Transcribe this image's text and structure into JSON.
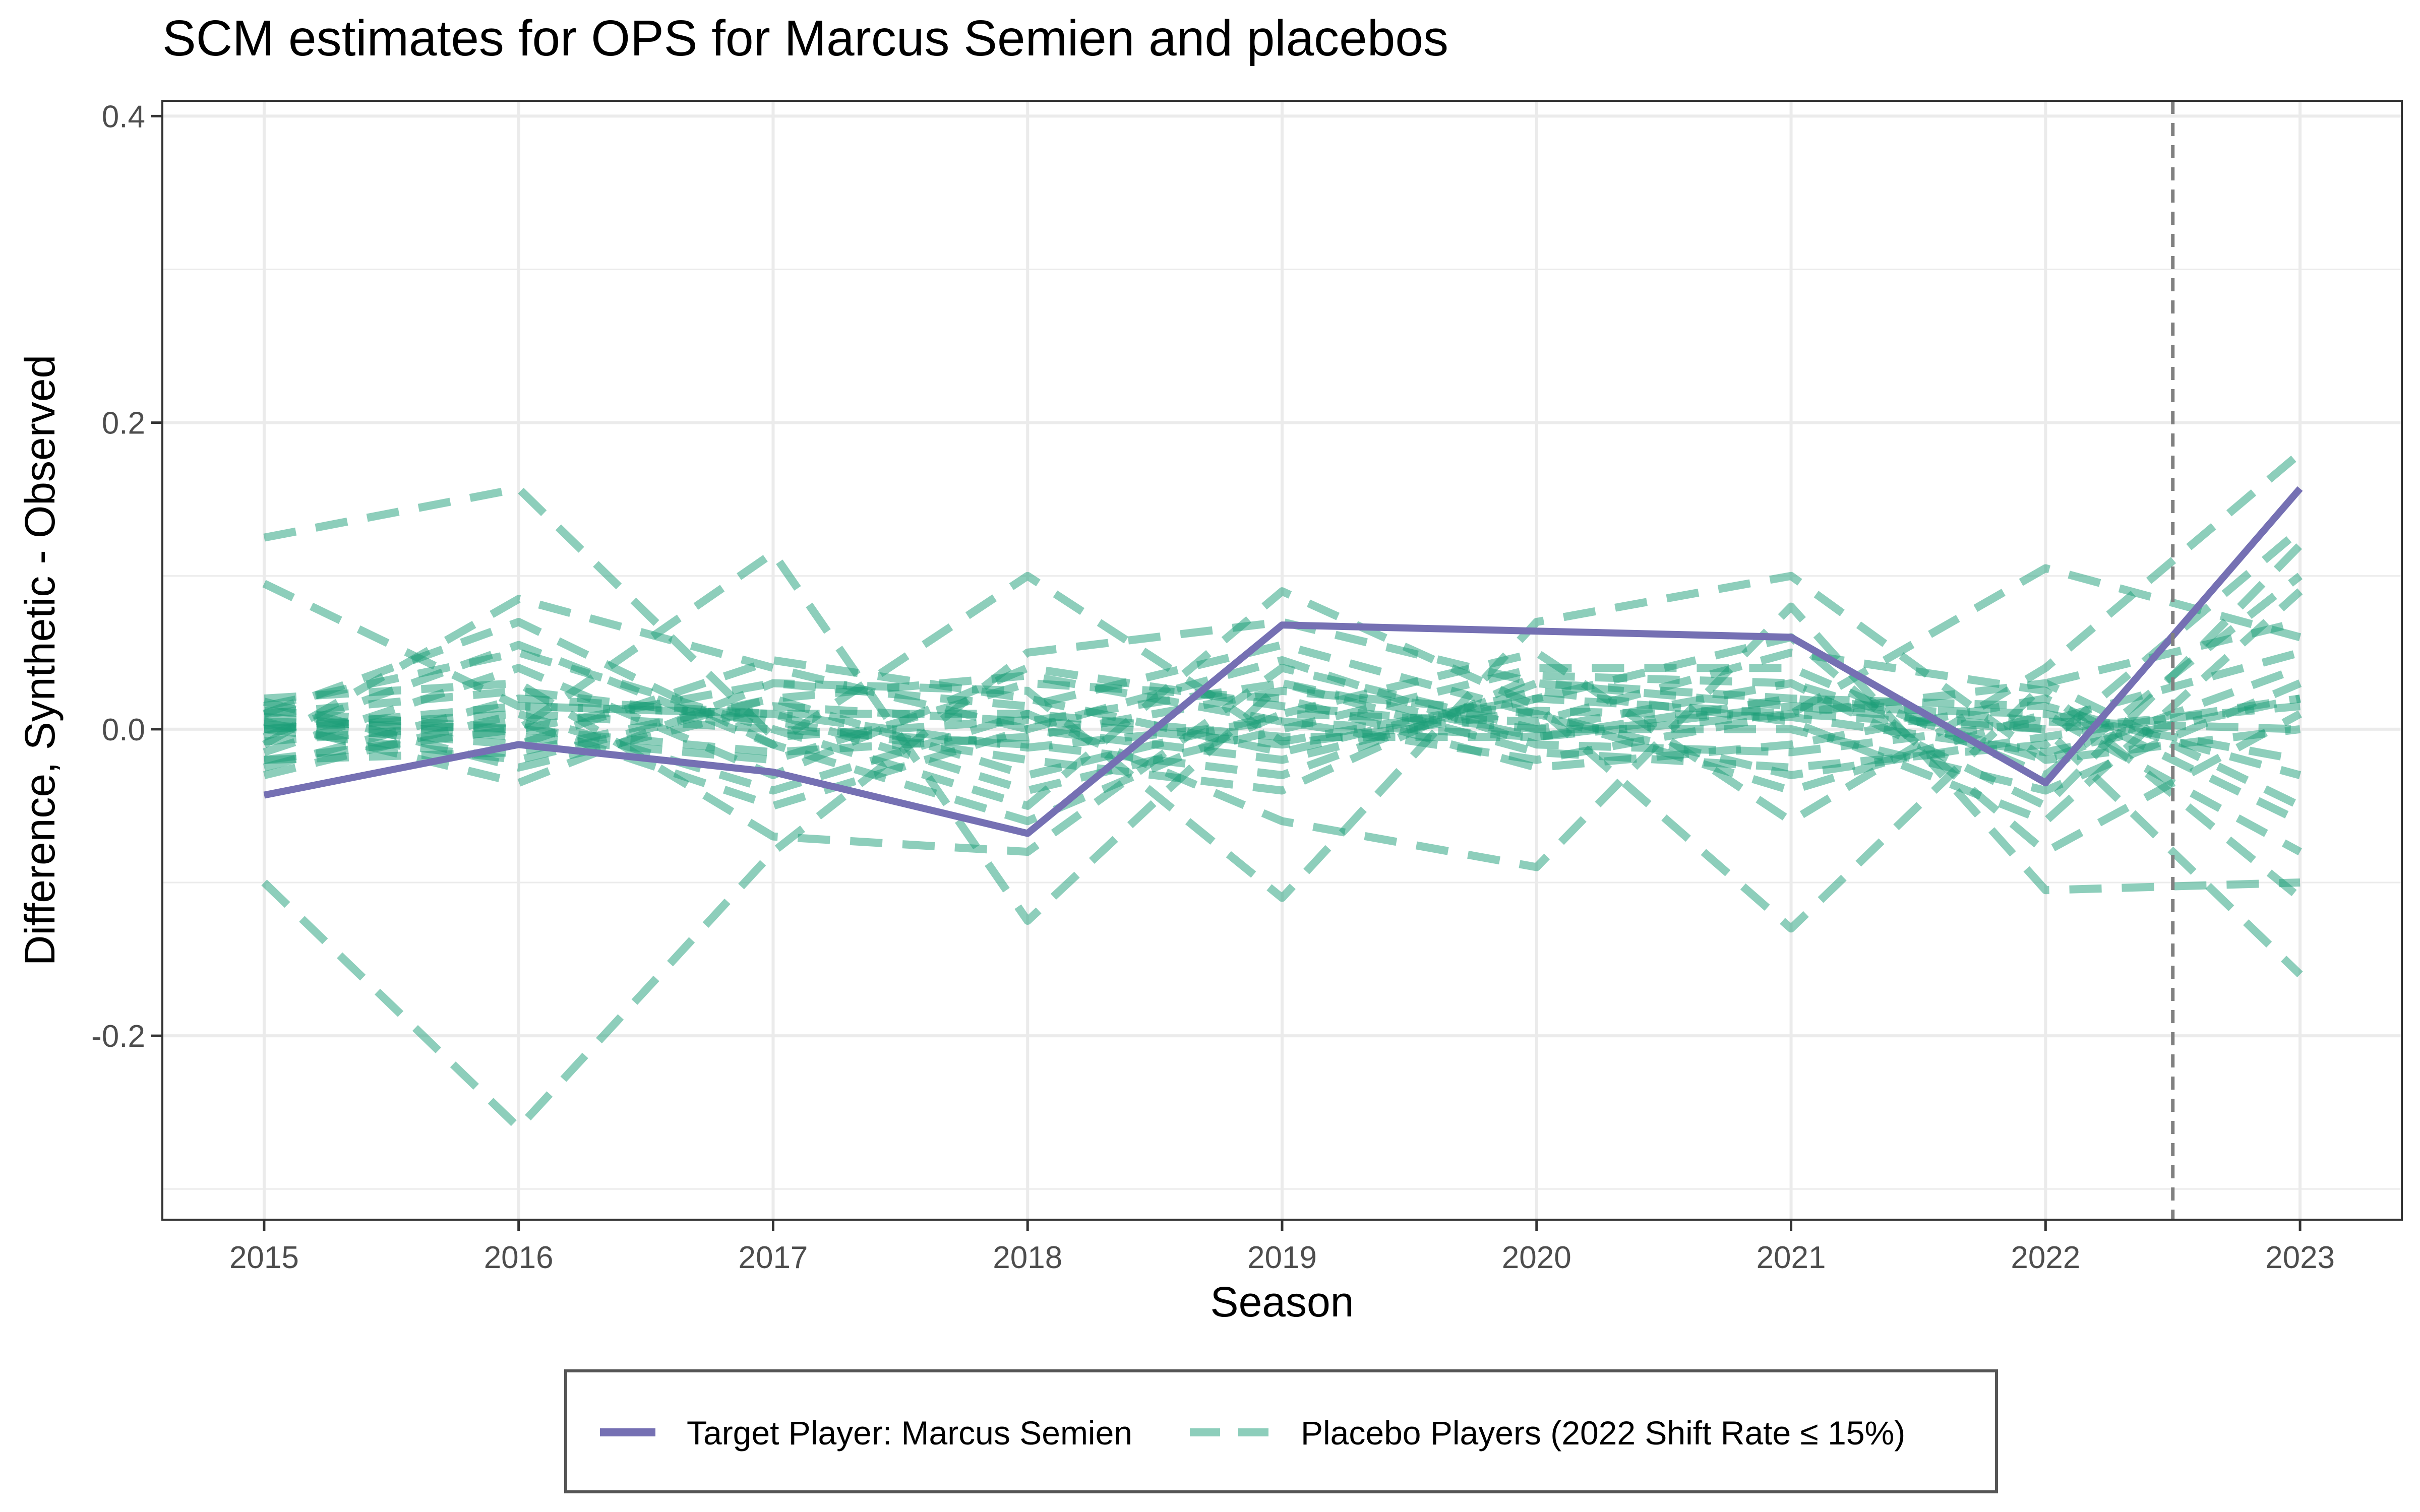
{
  "chart_data": {
    "type": "line",
    "title": "SCM estimates for OPS for Marcus Semien and placebos",
    "xlabel": "Season",
    "ylabel": "Difference, Synthetic - Observed",
    "x": [
      2015,
      2016,
      2017,
      2018,
      2019,
      2020,
      2021,
      2022,
      2023
    ],
    "x_ticks": [
      "2015",
      "2016",
      "2017",
      "2018",
      "2019",
      "2020",
      "2021",
      "2022",
      "2023"
    ],
    "xlim": [
      2014.6,
      2023.4
    ],
    "y_ticks": [
      "-0.2",
      "0.0",
      "0.2",
      "0.4"
    ],
    "ylim": [
      -0.32,
      0.41
    ],
    "grid": true,
    "reference_line_x": 2022.5,
    "legend_position": "bottom",
    "colors": {
      "target": "#7570b3",
      "placebo": "#1b9e77",
      "reference": "#808080"
    },
    "target_series": {
      "name": "Target Player: Marcus Semien",
      "values": [
        -0.043,
        -0.01,
        -0.028,
        -0.068,
        0.068,
        0.064,
        0.06,
        -0.035,
        0.157
      ]
    },
    "placebo_legend_label": "Placebo Players (2022 Shift Rate ≤ 15%)",
    "placebo_series": [
      {
        "values": [
          0.125,
          0.157,
          -0.005,
          0.006,
          -0.01,
          0.012,
          0.008,
          -0.015,
          0.02
        ]
      },
      {
        "values": [
          0.095,
          0.015,
          0.01,
          -0.012,
          0.005,
          -0.005,
          0.01,
          0.0,
          0.015
        ]
      },
      {
        "values": [
          -0.1,
          -0.26,
          -0.08,
          0.05,
          0.07,
          0.03,
          0.015,
          0.0,
          -0.16
        ]
      },
      {
        "values": [
          0.01,
          0.07,
          -0.01,
          0.1,
          -0.008,
          0.02,
          0.01,
          0.105,
          0.06
        ]
      },
      {
        "values": [
          -0.02,
          0.0,
          0.115,
          -0.125,
          0.03,
          -0.005,
          0.02,
          0.005,
          0.05
        ]
      },
      {
        "values": [
          0.005,
          -0.035,
          0.03,
          0.025,
          -0.11,
          0.07,
          0.1,
          -0.02,
          0.0
        ]
      },
      {
        "values": [
          0.015,
          0.05,
          0.0,
          -0.05,
          0.09,
          0.015,
          -0.13,
          0.03,
          0.07
        ]
      },
      {
        "values": [
          -0.03,
          0.01,
          -0.04,
          0.01,
          -0.06,
          -0.09,
          0.08,
          -0.105,
          -0.1
        ]
      },
      {
        "values": [
          0.0,
          -0.02,
          0.02,
          -0.03,
          0.01,
          0.05,
          -0.06,
          0.04,
          0.18
        ]
      },
      {
        "values": [
          0.02,
          0.03,
          -0.07,
          -0.08,
          0.04,
          0.0,
          0.03,
          -0.05,
          0.12
        ]
      },
      {
        "values": [
          -0.01,
          0.085,
          0.04,
          0.0,
          -0.02,
          0.02,
          0.06,
          -0.08,
          0.01
        ]
      },
      {
        "values": [
          0.008,
          -0.005,
          -0.02,
          0.03,
          0.02,
          -0.025,
          -0.01,
          0.02,
          -0.06
        ]
      },
      {
        "values": [
          -0.025,
          0.02,
          0.01,
          -0.04,
          0.0,
          0.04,
          0.04,
          -0.03,
          0.1
        ]
      },
      {
        "values": [
          0.012,
          0.0,
          0.03,
          0.015,
          0.055,
          0.01,
          -0.04,
          0.01,
          -0.08
        ]
      },
      {
        "values": [
          -0.015,
          0.04,
          -0.03,
          0.04,
          0.015,
          0.0,
          0.0,
          -0.04,
          0.03
        ]
      },
      {
        "values": [
          0.0,
          0.01,
          0.0,
          -0.01,
          -0.03,
          0.03,
          0.02,
          0.015,
          -0.03
        ]
      },
      {
        "values": [
          0.018,
          -0.025,
          0.015,
          0.005,
          0.03,
          -0.015,
          -0.025,
          -0.01,
          0.13
        ]
      },
      {
        "values": [
          -0.005,
          0.055,
          -0.01,
          -0.06,
          0.01,
          0.005,
          0.05,
          0.025,
          -0.11
        ]
      },
      {
        "values": [
          0.003,
          -0.01,
          0.045,
          0.02,
          -0.015,
          0.025,
          0.005,
          -0.06,
          0.09
        ]
      },
      {
        "values": [
          -0.008,
          0.005,
          -0.05,
          0.0,
          0.045,
          -0.01,
          -0.015,
          0.005,
          0.0
        ]
      },
      {
        "values": [
          0.01,
          0.025,
          0.005,
          -0.02,
          -0.04,
          0.035,
          0.03,
          -0.02,
          0.04
        ]
      },
      {
        "values": [
          -0.02,
          -0.015,
          0.02,
          0.035,
          0.005,
          -0.02,
          0.01,
          0.03,
          -0.05
        ]
      },
      {
        "values": [
          0.005,
          0.0,
          -0.015,
          -0.005,
          0.025,
          0.01,
          -0.03,
          -0.005,
          0.02
        ]
      },
      {
        "values": [
          0.0,
          0.015,
          0.01,
          0.01,
          -0.005,
          -0.005,
          0.015,
          0.01,
          -0.02
        ]
      }
    ]
  }
}
